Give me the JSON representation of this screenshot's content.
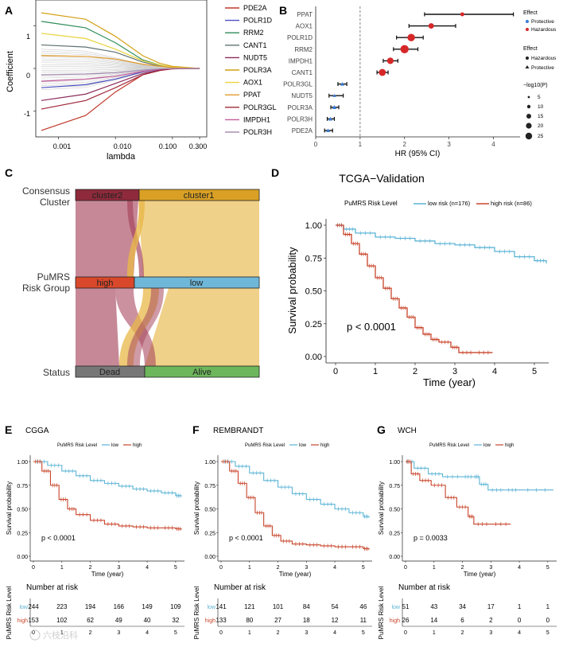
{
  "panels": {
    "A": {
      "label": "A",
      "xlabel": "lambda",
      "ylabel": "Coefficient",
      "xticks": [
        "0.001",
        "0.010",
        "0.100",
        "0.300"
      ],
      "yticks": [
        "1",
        "0",
        "-1"
      ],
      "legend": [
        {
          "name": "PDE2A",
          "color": "#c0392b"
        },
        {
          "name": "POLR1D",
          "color": "#4a4fc4"
        },
        {
          "name": "RRM2",
          "color": "#2e8b57"
        },
        {
          "name": "CANT1",
          "color": "#607070"
        },
        {
          "name": "NUDT5",
          "color": "#8b2a5a"
        },
        {
          "name": "POLR3A",
          "color": "#d4a017"
        },
        {
          "name": "AOX1",
          "color": "#e8d33c"
        },
        {
          "name": "PPAT",
          "color": "#e09a2a"
        },
        {
          "name": "POLR3GL",
          "color": "#a0283a"
        },
        {
          "name": "IMPDH1",
          "color": "#c45c9a"
        },
        {
          "name": "POLR3H",
          "color": "#a58fb2"
        }
      ]
    },
    "B": {
      "label": "B",
      "xlabel": "HR (95% CI)",
      "xticks": [
        "0",
        "1",
        "2",
        "3",
        "4"
      ],
      "legend_effect_title": "Effect",
      "legend_effect_items": [
        "Protective",
        "Hazardous"
      ],
      "legend_shape_title": "Effect",
      "legend_shape_items": [
        "Hazardous",
        "Protective"
      ],
      "legend_size_title": "−log10(P)",
      "legend_size_items": [
        "5",
        "10",
        "15",
        "20",
        "25"
      ]
    },
    "C": {
      "label": "C",
      "row_labels": [
        "Consensus\nCluster",
        "PuMRS\nRisk Group",
        "Status"
      ],
      "bar1": [
        "cluster2",
        "cluster1"
      ],
      "bar2": [
        "high",
        "low"
      ],
      "bar3": [
        "Dead",
        "Alive"
      ]
    },
    "D": {
      "label": "D",
      "title": "TCGA−Validation",
      "legend_title": "PuMRS Risk Level",
      "legend_items": [
        "low risk (n=176)",
        "high risk (n=86)"
      ],
      "pvalue": "p < 0.0001",
      "xlabel": "Time (year)",
      "ylabel": "Survival probability",
      "yticks": [
        "1.00",
        "0.75",
        "0.50",
        "0.25",
        "0.00"
      ],
      "xticks": [
        "0",
        "1",
        "2",
        "3",
        "4",
        "5"
      ]
    },
    "E": {
      "label": "E",
      "title": "CGGA",
      "pvalue": "p < 0.0001",
      "legend_title": "PuMRS Risk Level",
      "legend_items": [
        "low",
        "high"
      ],
      "xlabel": "Time (year)",
      "ylabel": "Survival probability",
      "yticks": [
        "1.00",
        "0.75",
        "0.50",
        "0.25",
        "0.00"
      ],
      "xticks": [
        "0",
        "1",
        "2",
        "3",
        "4",
        "5"
      ],
      "risk_title": "Number at risk",
      "risk_ylabel": "PuMRS Risk Level",
      "risk_rows": [
        {
          "name": "low",
          "values": [
            "244",
            "223",
            "194",
            "166",
            "149",
            "109"
          ]
        },
        {
          "name": "high",
          "values": [
            "153",
            "102",
            "62",
            "49",
            "40",
            "32"
          ]
        }
      ],
      "risk_xticks": [
        "0",
        "1",
        "2",
        "3",
        "4",
        "5"
      ]
    },
    "F": {
      "label": "F",
      "title": "REMBRANDT",
      "pvalue": "p < 0.0001",
      "legend_title": "PuMRS Risk Level",
      "legend_items": [
        "low",
        "high"
      ],
      "xlabel": "Time (year)",
      "ylabel": "Survival probability",
      "yticks": [
        "1.00",
        "0.75",
        "0.50",
        "0.25",
        "0.00"
      ],
      "xticks": [
        "0",
        "1",
        "2",
        "3",
        "4",
        "5"
      ],
      "risk_title": "Number at risk",
      "risk_ylabel": "PuMRS Risk Level",
      "risk_rows": [
        {
          "name": "low",
          "values": [
            "141",
            "121",
            "101",
            "84",
            "54",
            "46"
          ]
        },
        {
          "name": "high",
          "values": [
            "133",
            "80",
            "27",
            "18",
            "12",
            "11"
          ]
        }
      ],
      "risk_xticks": [
        "0",
        "1",
        "2",
        "3",
        "4",
        "5"
      ]
    },
    "G": {
      "label": "G",
      "title": "WCH",
      "pvalue": "p = 0.0033",
      "legend_title": "PuMRS Risk Level",
      "legend_items": [
        "low",
        "high"
      ],
      "xlabel": "Time (year)",
      "ylabel": "Survival probability",
      "yticks": [
        "1.00",
        "0.75",
        "0.50",
        "0.25",
        "0.00"
      ],
      "xticks": [
        "0",
        "1",
        "2",
        "3",
        "4",
        "5"
      ],
      "risk_title": "Number at risk",
      "risk_ylabel": "PuMRS Risk Level",
      "risk_rows": [
        {
          "name": "low",
          "values": [
            "51",
            "43",
            "34",
            "17",
            "1",
            "1"
          ]
        },
        {
          "name": "high",
          "values": [
            "26",
            "14",
            "6",
            "2",
            "0",
            "0"
          ]
        }
      ],
      "risk_xticks": [
        "0",
        "1",
        "2",
        "3",
        "4",
        "5"
      ]
    }
  },
  "chart_data": [
    {
      "panel": "A",
      "type": "line",
      "x_scale": "log",
      "xlim": [
        0.0004,
        0.4
      ],
      "ylim": [
        -1.6,
        1.6
      ],
      "series": [
        {
          "name": "PDE2A",
          "x": [
            0.0005,
            0.003,
            0.01,
            0.03,
            0.06,
            0.1,
            0.3
          ],
          "y": [
            -1.45,
            -1.1,
            -0.55,
            -0.15,
            -0.03,
            0,
            0
          ]
        },
        {
          "name": "POLR1D",
          "x": [
            0.0005,
            0.003,
            0.01,
            0.03,
            0.06,
            0.1,
            0.3
          ],
          "y": [
            -0.45,
            -0.38,
            -0.25,
            -0.08,
            -0.02,
            0,
            0
          ]
        },
        {
          "name": "RRM2",
          "x": [
            0.0005,
            0.003,
            0.01,
            0.03,
            0.06,
            0.1,
            0.3
          ],
          "y": [
            1.1,
            0.95,
            0.6,
            0.2,
            0.08,
            0.03,
            0
          ]
        },
        {
          "name": "CANT1",
          "x": [
            0.0005,
            0.003,
            0.01,
            0.03,
            0.06,
            0.1,
            0.3
          ],
          "y": [
            0.55,
            0.5,
            0.38,
            0.15,
            0.06,
            0.02,
            0
          ]
        },
        {
          "name": "NUDT5",
          "x": [
            0.0005,
            0.003,
            0.01,
            0.03,
            0.06,
            0.1,
            0.3
          ],
          "y": [
            -0.75,
            -0.6,
            -0.35,
            -0.12,
            -0.04,
            -0.01,
            0
          ]
        },
        {
          "name": "POLR3A",
          "x": [
            0.0005,
            0.003,
            0.01,
            0.03,
            0.06,
            0.1,
            0.3
          ],
          "y": [
            1.3,
            1.15,
            0.75,
            0.3,
            0.12,
            0.05,
            0
          ]
        },
        {
          "name": "AOX1",
          "x": [
            0.0005,
            0.003,
            0.01,
            0.03,
            0.06,
            0.1,
            0.3
          ],
          "y": [
            0.82,
            0.7,
            0.45,
            0.18,
            0.08,
            0.03,
            0
          ]
        },
        {
          "name": "PPAT",
          "x": [
            0.0005,
            0.003,
            0.01,
            0.03,
            0.06,
            0.1,
            0.3
          ],
          "y": [
            0.3,
            0.28,
            0.22,
            0.1,
            0.05,
            0.02,
            0
          ]
        },
        {
          "name": "POLR3GL",
          "x": [
            0.0005,
            0.003,
            0.01,
            0.03,
            0.06,
            0.1,
            0.3
          ],
          "y": [
            -0.95,
            -0.75,
            -0.45,
            -0.15,
            -0.05,
            -0.01,
            0
          ]
        },
        {
          "name": "IMPDH1",
          "x": [
            0.0005,
            0.003,
            0.01,
            0.03,
            0.06,
            0.1,
            0.3
          ],
          "y": [
            -0.3,
            -0.25,
            -0.18,
            -0.07,
            -0.02,
            0,
            0
          ]
        },
        {
          "name": "POLR3H",
          "x": [
            0.0005,
            0.003,
            0.01,
            0.03,
            0.06,
            0.1,
            0.3
          ],
          "y": [
            -0.15,
            -0.13,
            -0.1,
            -0.04,
            -0.01,
            0,
            0
          ]
        }
      ]
    },
    {
      "panel": "B",
      "type": "scatter",
      "xlim": [
        0,
        4.6
      ],
      "categories": [
        "PPAT",
        "AOX1",
        "POLR1D",
        "RRM2",
        "IMPDH1",
        "CANT1",
        "POLR3GL",
        "NUDT5",
        "POLR3A",
        "POLR3H",
        "PDE2A"
      ],
      "hr": [
        3.3,
        2.6,
        2.15,
        2.0,
        1.68,
        1.5,
        0.6,
        0.42,
        0.42,
        0.33,
        0.28
      ],
      "lower": [
        2.45,
        2.1,
        1.82,
        1.75,
        1.52,
        1.38,
        0.5,
        0.3,
        0.34,
        0.26,
        0.2
      ],
      "upper": [
        4.45,
        3.15,
        2.42,
        2.3,
        1.85,
        1.63,
        0.7,
        0.62,
        0.52,
        0.42,
        0.38
      ],
      "effect": [
        "Hazardous",
        "Hazardous",
        "Hazardous",
        "Hazardous",
        "Hazardous",
        "Hazardous",
        "Protective",
        "Protective",
        "Protective",
        "Protective",
        "Protective"
      ],
      "neglog10p": [
        8,
        14,
        22,
        25,
        18,
        20,
        8,
        6,
        10,
        9,
        8
      ],
      "reference_line": 1
    },
    {
      "panel": "C",
      "type": "sankey",
      "flows": [
        {
          "from": "cluster2",
          "to": "high",
          "value": 68
        },
        {
          "from": "cluster2",
          "to": "low",
          "value": 8
        },
        {
          "from": "cluster1",
          "to": "high",
          "value": 6
        },
        {
          "from": "cluster1",
          "to": "low",
          "value": 148
        },
        {
          "from": "high",
          "to": "Dead",
          "value": 60
        },
        {
          "from": "high",
          "to": "Alive",
          "value": 14
        },
        {
          "from": "low",
          "to": "Dead",
          "value": 18
        },
        {
          "from": "low",
          "to": "Alive",
          "value": 138
        }
      ]
    },
    {
      "panel": "D",
      "type": "line",
      "xlim": [
        0,
        5.2
      ],
      "ylim": [
        0,
        1
      ],
      "series": [
        {
          "name": "low risk (n=176)",
          "x": [
            0,
            0.2,
            0.5,
            1,
            1.5,
            2,
            2.5,
            3,
            3.5,
            4,
            4.5,
            5,
            5.3
          ],
          "y": [
            1,
            0.97,
            0.94,
            0.91,
            0.9,
            0.88,
            0.86,
            0.85,
            0.83,
            0.8,
            0.76,
            0.73,
            0.71
          ]
        },
        {
          "name": "high risk (n=86)",
          "x": [
            0,
            0.2,
            0.4,
            0.6,
            0.8,
            1,
            1.2,
            1.4,
            1.6,
            1.8,
            2,
            2.2,
            2.4,
            2.6,
            2.9,
            3.1,
            3.5,
            3.95
          ],
          "y": [
            1,
            0.93,
            0.86,
            0.78,
            0.69,
            0.6,
            0.52,
            0.44,
            0.37,
            0.3,
            0.22,
            0.17,
            0.13,
            0.11,
            0.07,
            0.03,
            0.03,
            0.03
          ]
        }
      ]
    },
    {
      "panel": "E",
      "type": "line",
      "xlim": [
        0,
        5.2
      ],
      "ylim": [
        0,
        1
      ],
      "series": [
        {
          "name": "low",
          "x": [
            0,
            0.5,
            1,
            1.5,
            2,
            2.5,
            3,
            3.5,
            4,
            4.5,
            5,
            5.2
          ],
          "y": [
            1,
            0.96,
            0.9,
            0.85,
            0.8,
            0.77,
            0.74,
            0.71,
            0.69,
            0.67,
            0.64,
            0.63
          ]
        },
        {
          "name": "high",
          "x": [
            0,
            0.3,
            0.6,
            0.9,
            1.2,
            1.5,
            2,
            2.5,
            3,
            3.5,
            4,
            4.5,
            5,
            5.2
          ],
          "y": [
            1,
            0.9,
            0.75,
            0.6,
            0.5,
            0.44,
            0.38,
            0.34,
            0.32,
            0.31,
            0.3,
            0.3,
            0.29,
            0.28
          ]
        }
      ]
    },
    {
      "panel": "F",
      "type": "line",
      "xlim": [
        0,
        5.2
      ],
      "ylim": [
        0,
        1
      ],
      "series": [
        {
          "name": "low",
          "x": [
            0,
            0.5,
            1,
            1.5,
            2,
            2.5,
            3,
            3.5,
            4,
            4.5,
            5,
            5.2
          ],
          "y": [
            1,
            0.95,
            0.88,
            0.8,
            0.73,
            0.66,
            0.6,
            0.55,
            0.5,
            0.46,
            0.42,
            0.41
          ]
        },
        {
          "name": "high",
          "x": [
            0,
            0.3,
            0.6,
            0.9,
            1.2,
            1.5,
            1.8,
            2.1,
            2.5,
            3,
            3.5,
            4,
            4.5,
            5,
            5.2
          ],
          "y": [
            1,
            0.9,
            0.77,
            0.62,
            0.46,
            0.32,
            0.22,
            0.16,
            0.13,
            0.12,
            0.11,
            0.1,
            0.1,
            0.08,
            0.07
          ]
        }
      ]
    },
    {
      "panel": "G",
      "type": "line",
      "xlim": [
        0,
        5.2
      ],
      "ylim": [
        0,
        1
      ],
      "series": [
        {
          "name": "low",
          "x": [
            0,
            0.3,
            0.8,
            1.3,
            2,
            2.4,
            2.6,
            2.9,
            3.5,
            4,
            5.2
          ],
          "y": [
            1,
            0.93,
            0.87,
            0.84,
            0.84,
            0.84,
            0.76,
            0.7,
            0.7,
            0.7,
            0.7
          ]
        },
        {
          "name": "high",
          "x": [
            0,
            0.2,
            0.5,
            0.9,
            1.4,
            1.8,
            2.2,
            2.4,
            3,
            3.7
          ],
          "y": [
            1,
            0.87,
            0.8,
            0.75,
            0.62,
            0.52,
            0.42,
            0.34,
            0.34,
            0.34
          ]
        }
      ]
    }
  ]
}
